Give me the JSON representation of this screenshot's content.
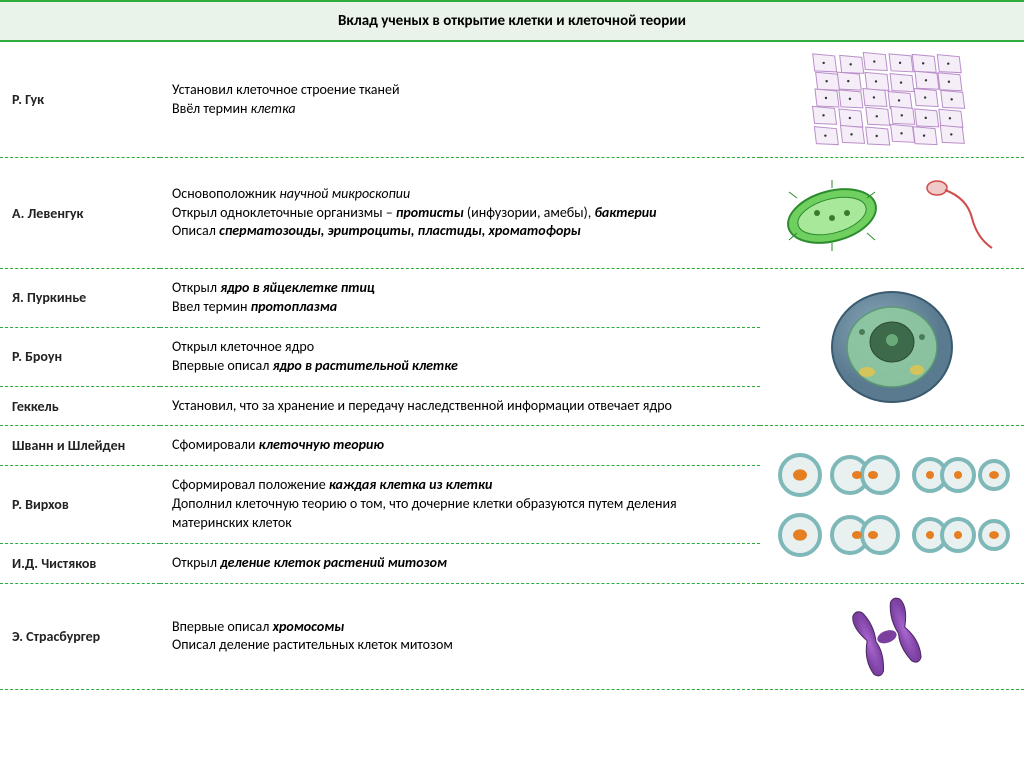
{
  "title": "Вклад ученых в открытие клетки и клеточной теории",
  "colors": {
    "border": "#2eab3b",
    "header_bg": "#eaf3e9",
    "text": "#000000"
  },
  "rows": [
    {
      "name": "Р. Гук",
      "desc_html": "Установил клеточное строение тканей<br>Ввёл термин <em>клетка</em>",
      "img_rowspan": 1,
      "image": "cork-cells"
    },
    {
      "name": "А. Левенгук",
      "desc_html": "Основоположник <em>научной микроскопии</em><br>Открыл одноклеточные организмы – <span class=\"bi\">протисты</span> (инфузории, амебы), <span class=\"bi\">бактерии</span><br>Описал <span class=\"bi\">сперматозоиды, эритроциты, пластиды, хроматофоры</span>",
      "img_rowspan": 1,
      "image": "protist-sperm"
    },
    {
      "name": "Я. Пуркинье",
      "desc_html": "Открыл <span class=\"bi\">ядро в яйцеклетке птиц</span><br>Ввел термин <span class=\"bi\">протоплазма</span>",
      "img_rowspan": 3,
      "image": "cell-nucleus"
    },
    {
      "name": "Р. Броун",
      "desc_html": "Открыл клеточное ядро<br>Впервые описал <span class=\"bi\">ядро в растительной клетке</span>"
    },
    {
      "name": "Геккель",
      "desc_html": "Установил, что за хранение и передачу наследственной информации отвечает ядро"
    },
    {
      "name": "Шванн и Шлейден",
      "desc_html": "Сфомировали <span class=\"bi\">клеточную теорию</span>",
      "img_rowspan": 3,
      "image": "cell-division"
    },
    {
      "name": "Р. Вирхов",
      "desc_html": "Сформировал положение <span class=\"bi\">каждая клетка из клетки</span><br>Дополнил клеточную теорию о том, что дочерние клетки образуются путем деления материнских клеток"
    },
    {
      "name": "И.Д. Чистяков",
      "desc_html": "Открыл <span class=\"bi\">деление клеток растений митозом</span>"
    },
    {
      "name": "Э. Страсбургер",
      "desc_html": "Впервые описал <span class=\"bi\">хромосомы</span><br>Описал деление растительных клеток митозом",
      "img_rowspan": 1,
      "image": "chromosome"
    }
  ],
  "images": {
    "cork-cells": {
      "bg": "#f5eef8",
      "wall": "#b98fc9"
    },
    "protist-sperm": {
      "body": "#6fcf5f",
      "outline": "#2d8a2d",
      "tail": "#d14b4b"
    },
    "cell-nucleus": {
      "outer": "#5a7a8f",
      "inner": "#8fc9a0",
      "nucleus": "#3d6a4a"
    },
    "cell-division": {
      "membrane": "#7fb8b8",
      "fill": "#e8f0f0",
      "nucleus": "#e67e22"
    },
    "chromosome": {
      "color": "#7b3fa0",
      "highlight": "#a968d1"
    }
  }
}
